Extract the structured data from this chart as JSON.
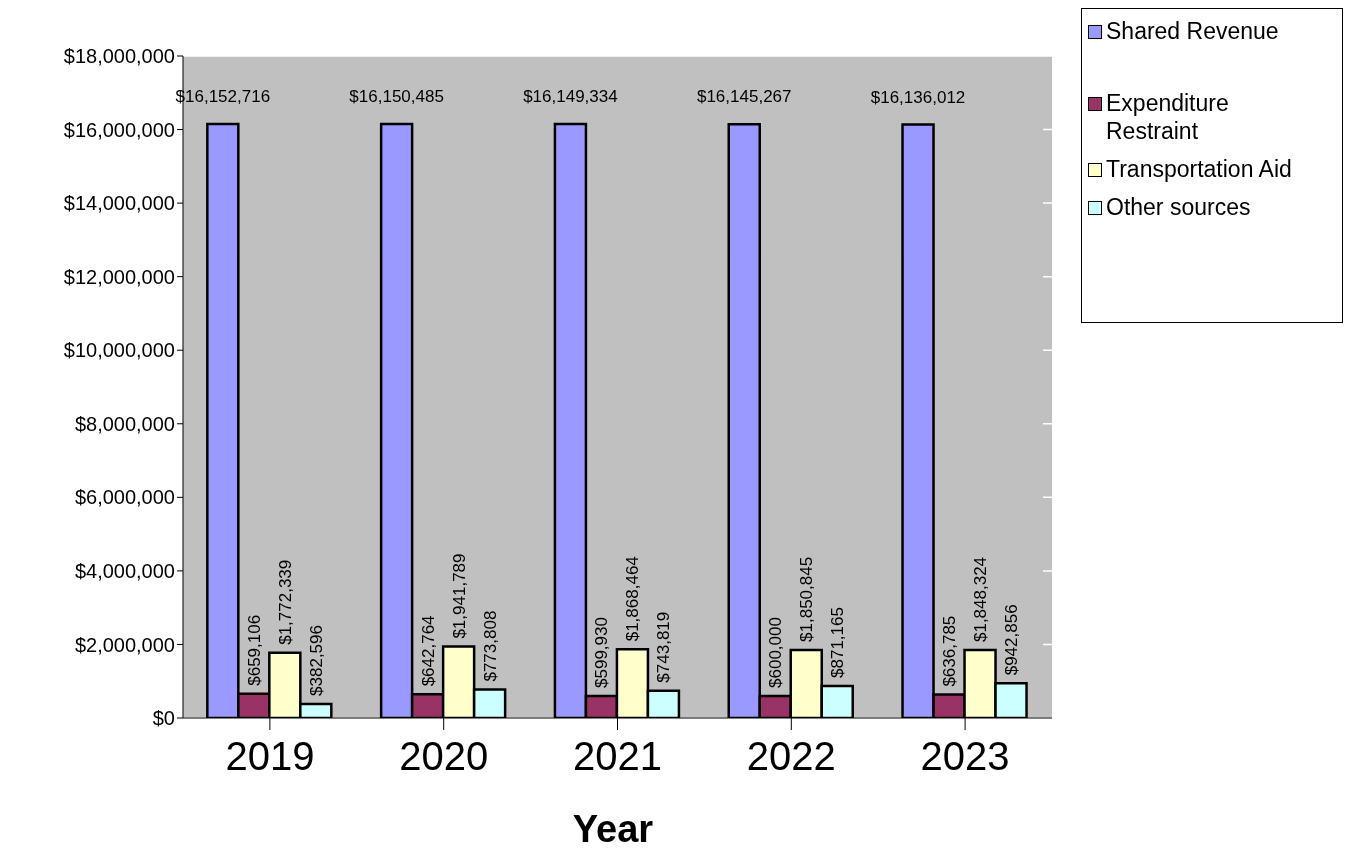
{
  "chart_data": {
    "type": "bar",
    "xlabel": "Year",
    "categories": [
      "2019",
      "2020",
      "2021",
      "2022",
      "2023"
    ],
    "series": [
      {
        "name": "Shared Revenue",
        "color": "#9999ff",
        "values": [
          16152716,
          16150485,
          16149334,
          16145267,
          16136012
        ],
        "value_labels": [
          "$16,152,716",
          "$16,150,485",
          "$16,149,334",
          "$16,145,267",
          "$16,136,012"
        ]
      },
      {
        "name": "Expenditure Restraint",
        "color": "#993366",
        "values": [
          659106,
          642764,
          599930,
          600000,
          636785
        ],
        "value_labels": [
          "$659,106",
          "$642,764",
          "$599,930",
          "$600,000",
          "$636,785"
        ]
      },
      {
        "name": "Transportation Aid",
        "color": "#ffffcc",
        "values": [
          1772339,
          1941789,
          1868464,
          1850845,
          1848324
        ],
        "value_labels": [
          "$1,772,339",
          "$1,941,789",
          "$1,868,464",
          "$1,850,845",
          "$1,848,324"
        ]
      },
      {
        "name": "Other sources",
        "color": "#ccffff",
        "values": [
          382596,
          773808,
          743819,
          871165,
          942856
        ],
        "value_labels": [
          "$382,596",
          "$773,808",
          "$743,819",
          "$871,165",
          "$942,856"
        ]
      }
    ],
    "ylim": [
      0,
      18000000
    ],
    "yticks": [
      {
        "value": 0,
        "label": "$0"
      },
      {
        "value": 2000000,
        "label": "$2,000,000"
      },
      {
        "value": 4000000,
        "label": "$4,000,000"
      },
      {
        "value": 6000000,
        "label": "$6,000,000"
      },
      {
        "value": 8000000,
        "label": "$8,000,000"
      },
      {
        "value": 10000000,
        "label": "$10,000,000"
      },
      {
        "value": 12000000,
        "label": "$12,000,000"
      },
      {
        "value": 14000000,
        "label": "$14,000,000"
      },
      {
        "value": 16000000,
        "label": "$16,000,000"
      },
      {
        "value": 18000000,
        "label": "$18,000,000"
      }
    ],
    "grid": "y",
    "legend": "top right"
  }
}
